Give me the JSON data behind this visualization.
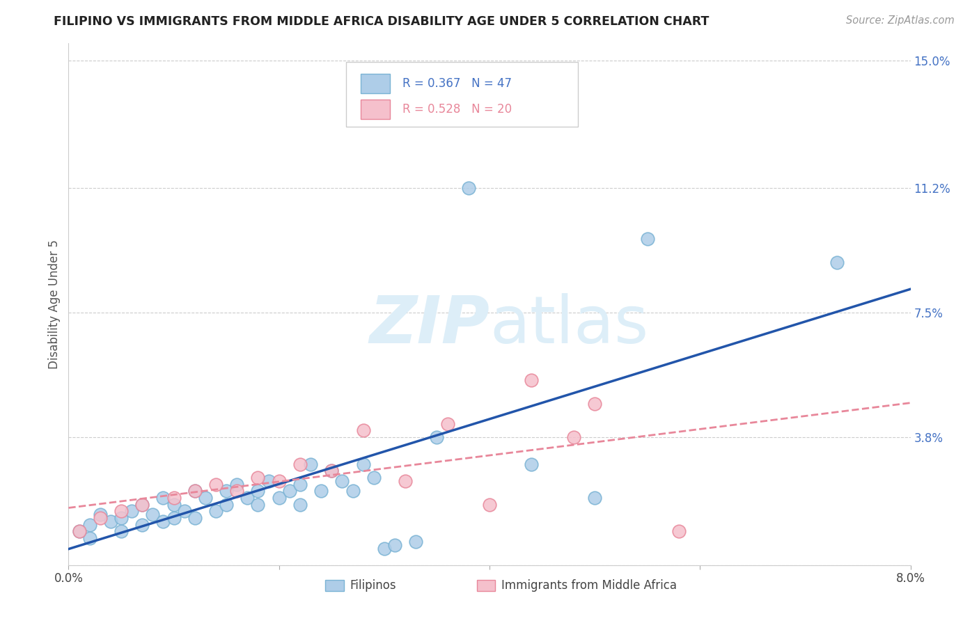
{
  "title": "FILIPINO VS IMMIGRANTS FROM MIDDLE AFRICA DISABILITY AGE UNDER 5 CORRELATION CHART",
  "source": "Source: ZipAtlas.com",
  "ylabel_label": "Disability Age Under 5",
  "ylabel_ticks": [
    0.0,
    0.038,
    0.075,
    0.112,
    0.15
  ],
  "ylabel_tick_labels": [
    "",
    "3.8%",
    "7.5%",
    "11.2%",
    "15.0%"
  ],
  "xmin": 0.0,
  "xmax": 0.08,
  "ymin": 0.0,
  "ymax": 0.155,
  "legend_r1": "R = 0.367",
  "legend_n1": "N = 47",
  "legend_r2": "R = 0.528",
  "legend_n2": "N = 20",
  "blue_dot_color": "#aecde8",
  "blue_dot_edge": "#7ab3d4",
  "pink_dot_color": "#f5c0cc",
  "pink_dot_edge": "#e8879a",
  "blue_line_color": "#2255aa",
  "pink_line_color": "#e8879a",
  "watermark_color": "#ddeef8",
  "title_color": "#222222",
  "source_color": "#999999",
  "ylabel_color": "#4472c4",
  "grid_color": "#cccccc",
  "filipinos_x": [
    0.001,
    0.002,
    0.002,
    0.003,
    0.004,
    0.005,
    0.005,
    0.006,
    0.007,
    0.007,
    0.008,
    0.009,
    0.009,
    0.01,
    0.01,
    0.011,
    0.012,
    0.012,
    0.013,
    0.014,
    0.015,
    0.015,
    0.016,
    0.017,
    0.018,
    0.018,
    0.019,
    0.02,
    0.021,
    0.022,
    0.022,
    0.023,
    0.024,
    0.025,
    0.026,
    0.027,
    0.028,
    0.029,
    0.03,
    0.031,
    0.033,
    0.035,
    0.038,
    0.044,
    0.05,
    0.055,
    0.073
  ],
  "filipinos_y": [
    0.01,
    0.012,
    0.008,
    0.015,
    0.013,
    0.014,
    0.01,
    0.016,
    0.012,
    0.018,
    0.015,
    0.013,
    0.02,
    0.018,
    0.014,
    0.016,
    0.022,
    0.014,
    0.02,
    0.016,
    0.022,
    0.018,
    0.024,
    0.02,
    0.022,
    0.018,
    0.025,
    0.02,
    0.022,
    0.024,
    0.018,
    0.03,
    0.022,
    0.028,
    0.025,
    0.022,
    0.03,
    0.026,
    0.005,
    0.006,
    0.007,
    0.038,
    0.112,
    0.03,
    0.02,
    0.097,
    0.09
  ],
  "immigrants_x": [
    0.001,
    0.003,
    0.005,
    0.007,
    0.01,
    0.012,
    0.014,
    0.016,
    0.018,
    0.02,
    0.022,
    0.025,
    0.028,
    0.032,
    0.036,
    0.04,
    0.044,
    0.048,
    0.05,
    0.058
  ],
  "immigrants_y": [
    0.01,
    0.014,
    0.016,
    0.018,
    0.02,
    0.022,
    0.024,
    0.022,
    0.026,
    0.025,
    0.03,
    0.028,
    0.04,
    0.025,
    0.042,
    0.018,
    0.055,
    0.038,
    0.048,
    0.01
  ]
}
